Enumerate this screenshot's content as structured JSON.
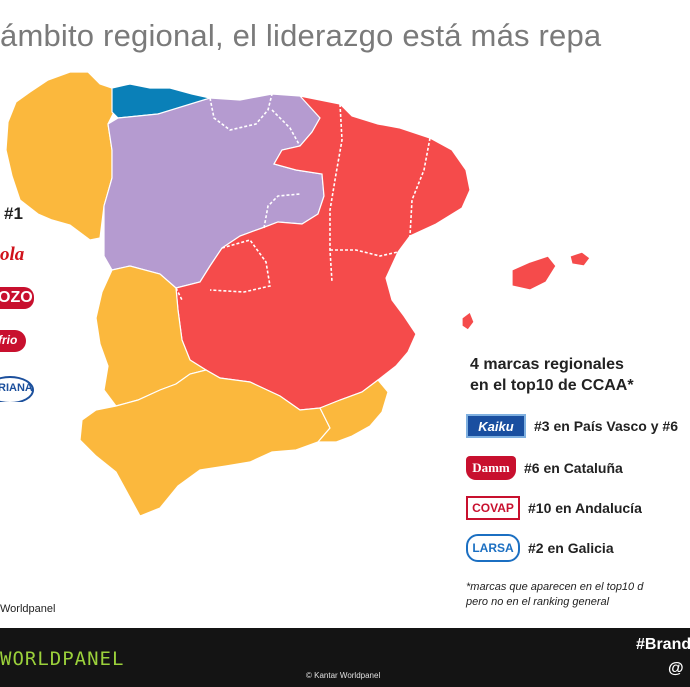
{
  "slide": {
    "title": "ámbito regional, el liderazgo está más repa",
    "rank_heading": "#1",
    "source": "Worldpanel"
  },
  "left_logos": [
    {
      "text": "ola",
      "color": "#d0121b",
      "bg": "#ffffff",
      "icon": "coca-cola-logo"
    },
    {
      "text": "OZO",
      "color": "#ffffff",
      "bg": "#c8102e",
      "icon": "pozo-logo"
    },
    {
      "text": "frio",
      "color": "#ffffff",
      "bg": "#c8102e",
      "icon": "campofrio-logo"
    },
    {
      "text": "RIANA",
      "color": "#1b4f9c",
      "bg": "#ffffff",
      "icon": "asturiana-logo"
    }
  ],
  "legend": {
    "title_line1": "4 marcas regionales",
    "title_line2": "en el top10 de CCAA*",
    "items": [
      {
        "logo": "Kaiku",
        "label": "#3 en País Vasco y #6",
        "logo_bg": "#1a4fa0",
        "logo_fg": "#ffffff",
        "icon": "kaiku-logo"
      },
      {
        "logo": "Damm",
        "label": "#6 en Cataluña",
        "logo_bg": "#c8102e",
        "logo_fg": "#ffffff",
        "icon": "damm-logo"
      },
      {
        "logo": "COVAP",
        "label": "#10 en Andalucía",
        "logo_bg": "#ffffff",
        "logo_fg": "#c8102e",
        "icon": "covap-logo"
      },
      {
        "logo": "LARSA",
        "label": "#2 en Galicia",
        "logo_bg": "#ffffff",
        "logo_fg": "#1b6fc2",
        "icon": "larsa-logo"
      }
    ],
    "note_line1": "*marcas que aparecen en el top10 d",
    "note_line2": "pero no en el ranking general"
  },
  "map": {
    "colors": {
      "red": "#f54b4b",
      "purple": "#b59bd0",
      "yellow": "#fbb83d",
      "blue": "#0a80b8"
    }
  },
  "footer": {
    "logo": "WORLDPANEL",
    "copyright": "© Kantar Worldpanel",
    "hashtag": "#Brand",
    "handle": "@"
  }
}
